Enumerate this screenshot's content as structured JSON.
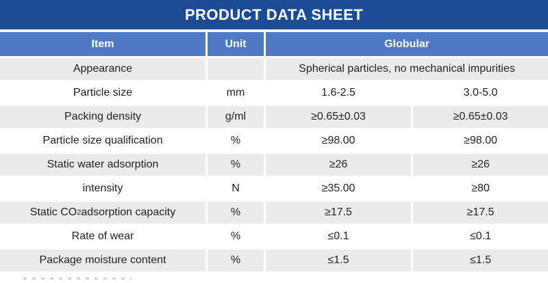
{
  "title": "PRODUCT DATA SHEET",
  "colors": {
    "title_bar": "#1d4b94",
    "header_row": "#4d7ac0",
    "row_alt_gray": "#ebebeb",
    "text": "#1f1f1f"
  },
  "table": {
    "columns": {
      "item": "Item",
      "unit": "Unit",
      "globular": "Globular"
    },
    "rows": [
      {
        "item": "Appearance",
        "unit": "",
        "value_span": "Spherical particles, no mechanical impurities"
      },
      {
        "item": "Particle size",
        "unit": "mm",
        "value1": "1.6-2.5",
        "value2": "3.0-5.0"
      },
      {
        "item": "Packing density",
        "unit": "g/ml",
        "value1": "≥0.65±0.03",
        "value2": "≥0.65±0.03"
      },
      {
        "item": "Particle size qualification",
        "unit": "%",
        "value1": "≥98.00",
        "value2": "≥98.00"
      },
      {
        "item": "Static water adsorption",
        "unit": "%",
        "value1": "≥26",
        "value2": "≥26"
      },
      {
        "item": "intensity",
        "unit": "N",
        "value1": "≥35.00",
        "value2": "≥80"
      },
      {
        "item_pre": "Static CO",
        "item_sub": "2",
        "item_post": " adsorption capacity",
        "unit": "%",
        "value1": "≥17.5",
        "value2": "≥17.5"
      },
      {
        "item": "Rate of wear",
        "unit": "%",
        "value1": "≤0.1",
        "value2": "≤0.1"
      },
      {
        "item": "Package moisture content",
        "unit": "%",
        "value1": "≤1.5",
        "value2": "≤1.5"
      }
    ]
  }
}
